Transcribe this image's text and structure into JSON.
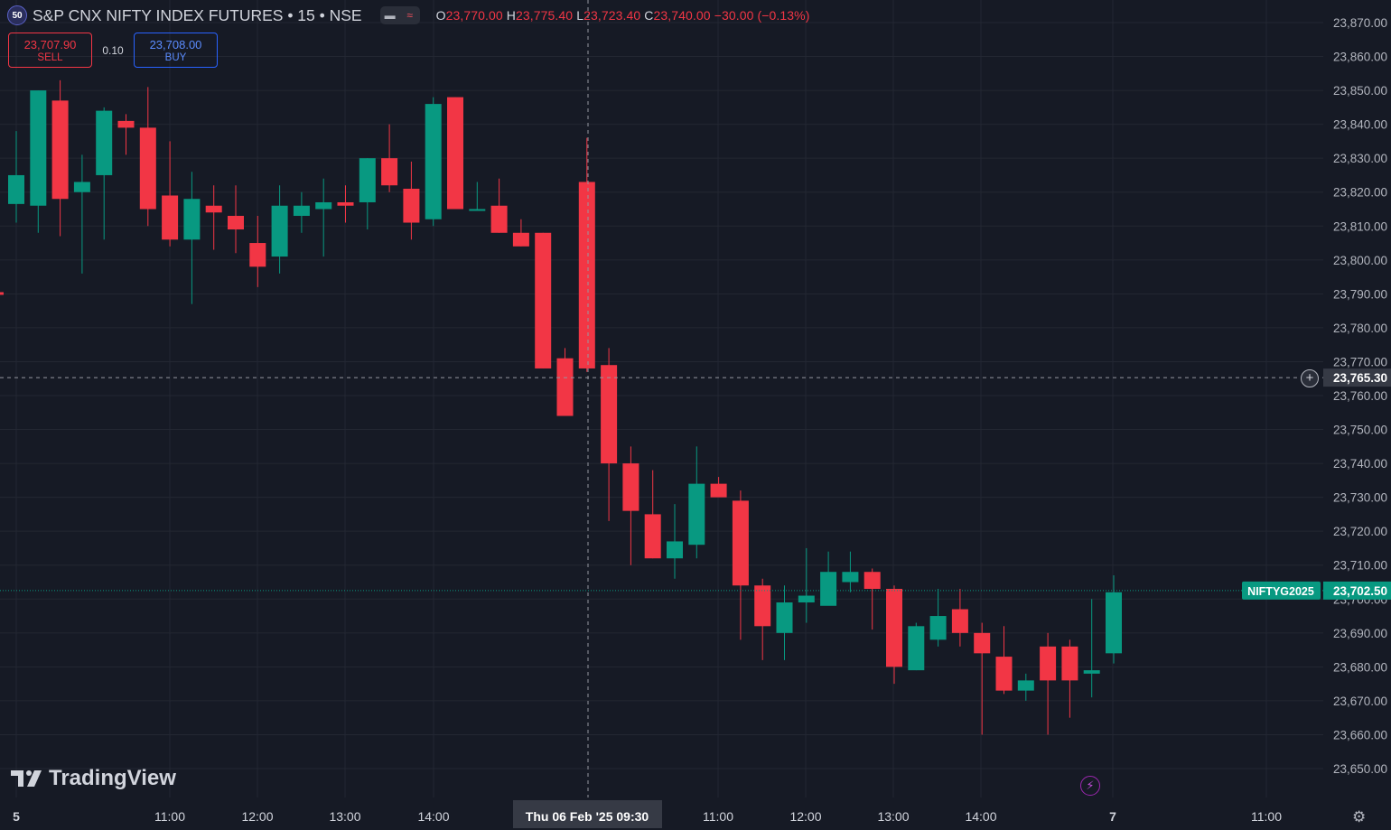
{
  "legend": {
    "badge": "50",
    "symbol": "S&P CNX NIFTY INDEX FUTURES • 15 • NSE",
    "open_label": "O",
    "open": "23,770.00",
    "high_label": "H",
    "high": "23,775.40",
    "low_label": "L",
    "low": "23,723.40",
    "close_label": "C",
    "close": "23,740.00",
    "change": "−30.00 (−0.13%)"
  },
  "trade": {
    "sell_price": "23,707.90",
    "sell_label": "SELL",
    "spread": "0.10",
    "buy_price": "23,708.00",
    "buy_label": "BUY"
  },
  "watermark": "TradingView",
  "colors": {
    "up": "#089981",
    "down": "#f23645",
    "background": "#161a25",
    "grid": "#232732"
  },
  "chart_data": {
    "type": "candlestick",
    "interval": "15",
    "y_ticks": [
      "23,870.00",
      "23,860.00",
      "23,850.00",
      "23,840.00",
      "23,830.00",
      "23,820.00",
      "23,810.00",
      "23,800.00",
      "23,790.00",
      "23,780.00",
      "23,770.00",
      "23,760.00",
      "23,750.00",
      "23,740.00",
      "23,730.00",
      "23,720.00",
      "23,710.00",
      "23,700.00",
      "23,690.00",
      "23,680.00",
      "23,670.00",
      "23,660.00",
      "23,650.00"
    ],
    "ylim": [
      23644,
      23876
    ],
    "x_ticks": [
      "5",
      "11:00",
      "12:00",
      "13:00",
      "14:00",
      "11:00",
      "12:00",
      "13:00",
      "14:00",
      "7",
      "11:00"
    ],
    "crosshair": {
      "price": "23,765.30",
      "time_label": "Thu 06 Feb '25   09:30"
    },
    "last_price": {
      "symbol_label": "NIFTYG2025",
      "value": "23,702.50"
    },
    "candles": [
      {
        "o": 23816.5,
        "h": 23838,
        "l": 23811,
        "c": 23825
      },
      {
        "o": 23816,
        "h": 23850,
        "l": 23808,
        "c": 23850
      },
      {
        "o": 23847,
        "h": 23853,
        "l": 23807,
        "c": 23818
      },
      {
        "o": 23820,
        "h": 23831,
        "l": 23796,
        "c": 23823
      },
      {
        "o": 23825,
        "h": 23845,
        "l": 23806,
        "c": 23844
      },
      {
        "o": 23841,
        "h": 23843,
        "l": 23831,
        "c": 23839
      },
      {
        "o": 23839,
        "h": 23851,
        "l": 23810,
        "c": 23815
      },
      {
        "o": 23819,
        "h": 23835,
        "l": 23804,
        "c": 23806
      },
      {
        "o": 23806,
        "h": 23826,
        "l": 23787,
        "c": 23818
      },
      {
        "o": 23816,
        "h": 23822,
        "l": 23803,
        "c": 23814
      },
      {
        "o": 23813,
        "h": 23822,
        "l": 23802,
        "c": 23809
      },
      {
        "o": 23805,
        "h": 23813,
        "l": 23792,
        "c": 23798
      },
      {
        "o": 23801,
        "h": 23822,
        "l": 23796,
        "c": 23816
      },
      {
        "o": 23813,
        "h": 23820,
        "l": 23808,
        "c": 23816
      },
      {
        "o": 23815,
        "h": 23824,
        "l": 23801,
        "c": 23817
      },
      {
        "o": 23817,
        "h": 23822,
        "l": 23811,
        "c": 23816
      },
      {
        "o": 23817,
        "h": 23830,
        "l": 23809,
        "c": 23830
      },
      {
        "o": 23830,
        "h": 23840,
        "l": 23820,
        "c": 23822
      },
      {
        "o": 23821,
        "h": 23829,
        "l": 23806,
        "c": 23811
      },
      {
        "o": 23812,
        "h": 23848,
        "l": 23810,
        "c": 23846
      },
      {
        "o": 23848,
        "h": 23848,
        "l": 23815,
        "c": 23815
      },
      {
        "o": 23815,
        "h": 23823,
        "l": 23815,
        "c": 23815
      },
      {
        "o": 23816,
        "h": 23824,
        "l": 23808,
        "c": 23808
      },
      {
        "o": 23808,
        "h": 23812,
        "l": 23804,
        "c": 23804
      },
      {
        "o": 23808,
        "h": 23808,
        "l": 23768,
        "c": 23768
      },
      {
        "o": 23771,
        "h": 23774,
        "l": 23754,
        "c": 23754
      },
      {
        "o": 23823,
        "h": 23836,
        "l": 23767,
        "c": 23768
      },
      {
        "o": 23769,
        "h": 23774,
        "l": 23723,
        "c": 23740
      },
      {
        "o": 23740,
        "h": 23745,
        "l": 23710,
        "c": 23726
      },
      {
        "o": 23725,
        "h": 23738,
        "l": 23712,
        "c": 23712
      },
      {
        "o": 23712,
        "h": 23728,
        "l": 23706,
        "c": 23717
      },
      {
        "o": 23716,
        "h": 23745,
        "l": 23712,
        "c": 23734
      },
      {
        "o": 23734,
        "h": 23736,
        "l": 23731,
        "c": 23730
      },
      {
        "o": 23729,
        "h": 23732,
        "l": 23688,
        "c": 23704
      },
      {
        "o": 23704,
        "h": 23706,
        "l": 23682,
        "c": 23692
      },
      {
        "o": 23690,
        "h": 23704,
        "l": 23682,
        "c": 23699
      },
      {
        "o": 23699,
        "h": 23715,
        "l": 23693,
        "c": 23701
      },
      {
        "o": 23698,
        "h": 23714,
        "l": 23699,
        "c": 23708
      },
      {
        "o": 23705,
        "h": 23714,
        "l": 23702,
        "c": 23708
      },
      {
        "o": 23708,
        "h": 23709,
        "l": 23691,
        "c": 23703
      },
      {
        "o": 23703,
        "h": 23704,
        "l": 23675,
        "c": 23680
      },
      {
        "o": 23679,
        "h": 23693,
        "l": 23679,
        "c": 23692
      },
      {
        "o": 23688,
        "h": 23703,
        "l": 23686,
        "c": 23695
      },
      {
        "o": 23697,
        "h": 23703,
        "l": 23686,
        "c": 23690
      },
      {
        "o": 23690,
        "h": 23693,
        "l": 23660,
        "c": 23684
      },
      {
        "o": 23683,
        "h": 23692,
        "l": 23672,
        "c": 23673
      },
      {
        "o": 23673,
        "h": 23678,
        "l": 23670,
        "c": 23676
      },
      {
        "o": 23686,
        "h": 23690,
        "l": 23660,
        "c": 23676
      },
      {
        "o": 23686,
        "h": 23688,
        "l": 23665,
        "c": 23676
      },
      {
        "o": 23678,
        "h": 23700,
        "l": 23671,
        "c": 23679
      },
      {
        "o": 23684,
        "h": 23707,
        "l": 23681,
        "c": 23702
      }
    ]
  }
}
